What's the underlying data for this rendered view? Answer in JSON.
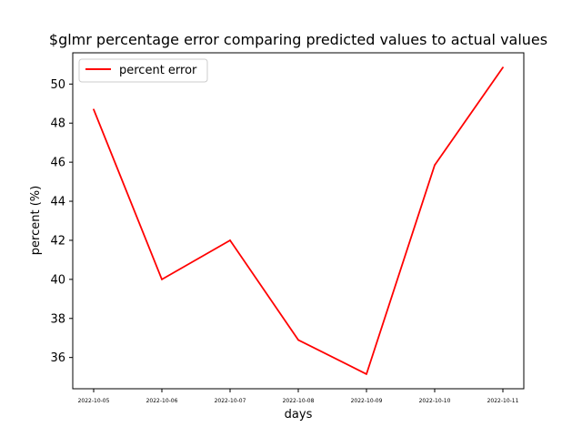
{
  "chart_data": {
    "type": "line",
    "title": "$glmr percentage error comparing predicted values to actual values",
    "xlabel": "days",
    "ylabel": "percent (%)",
    "x": [
      "2022-10-05",
      "2022-10-06",
      "2022-10-07",
      "2022-10-08",
      "2022-10-09",
      "2022-10-10",
      "2022-10-11"
    ],
    "series": [
      {
        "name": "percent error",
        "color": "#ff0000",
        "values": [
          48.7,
          40.0,
          42.0,
          36.9,
          35.15,
          45.85,
          50.85
        ]
      }
    ],
    "ylim": [
      34.4,
      51.6
    ],
    "yticks": [
      36,
      38,
      40,
      42,
      44,
      46,
      48,
      50
    ],
    "grid": false,
    "legend": "top-left"
  }
}
